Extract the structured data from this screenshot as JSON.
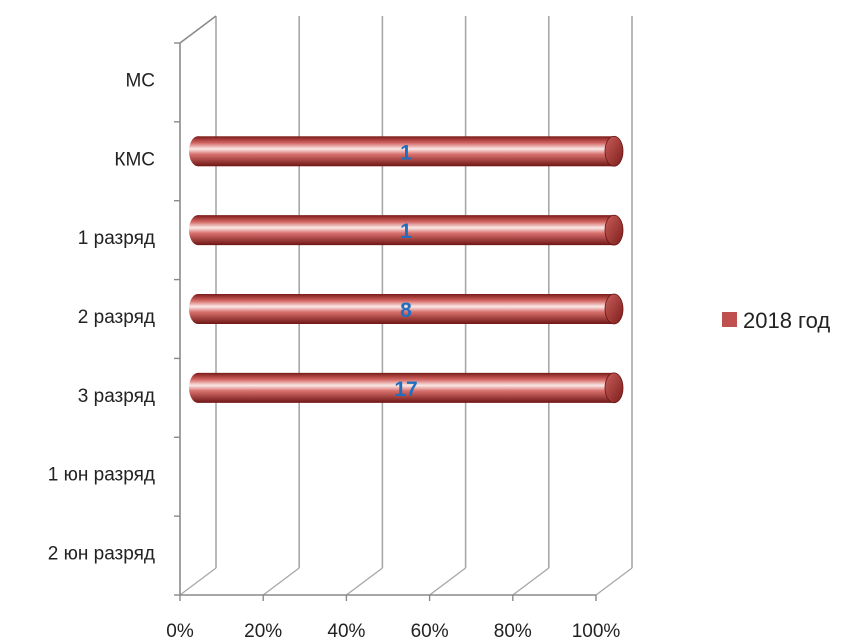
{
  "chart_data": {
    "type": "bar",
    "orientation": "horizontal",
    "stacked_percent": true,
    "style": "3d-cylinder",
    "categories": [
      "2 юн разряд",
      "1 юн разряд",
      "3 разряд",
      "2 разряд",
      "1 разряд",
      "КМС",
      "МС"
    ],
    "series": [
      {
        "name": "2018 год",
        "values": [
          null,
          null,
          17,
          8,
          1,
          1,
          null
        ],
        "color": "#c0504d"
      }
    ],
    "x_ticks": [
      "0%",
      "20%",
      "40%",
      "60%",
      "80%",
      "100%"
    ],
    "xlim": [
      0,
      100
    ],
    "grid": "vertical",
    "legend_position": "right"
  }
}
